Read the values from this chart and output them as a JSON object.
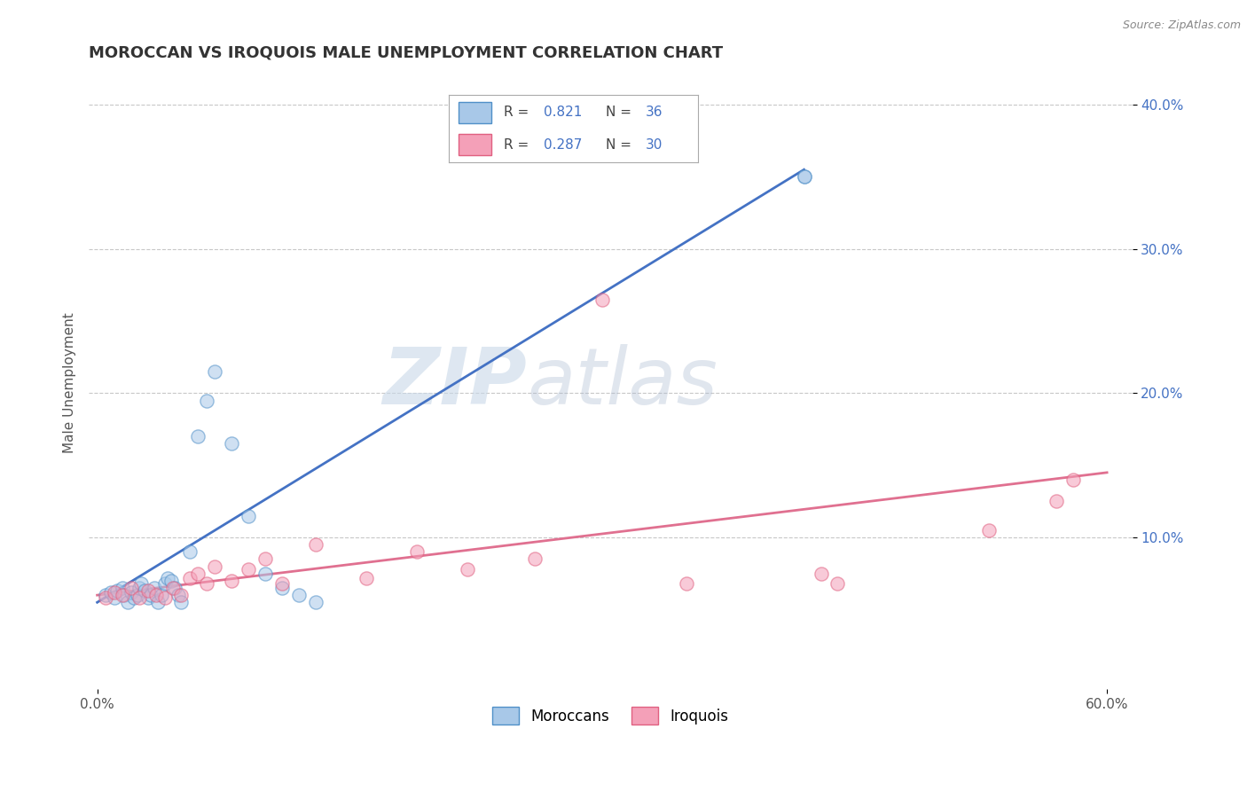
{
  "title": "MOROCCAN VS IROQUOIS MALE UNEMPLOYMENT CORRELATION CHART",
  "source": "Source: ZipAtlas.com",
  "ylabel": "Male Unemployment",
  "xlim": [
    -0.005,
    0.615
  ],
  "ylim": [
    -0.005,
    0.42
  ],
  "xticks": [
    0.0,
    0.6
  ],
  "xticklabels": [
    "0.0%",
    "60.0%"
  ],
  "yticks_right": [
    0.1,
    0.2,
    0.3,
    0.4
  ],
  "ytick_right_labels": [
    "10.0%",
    "20.0%",
    "30.0%",
    "40.0%"
  ],
  "moroccan_color": "#a8c8e8",
  "iroquois_color": "#f4a0b8",
  "moroccan_edge_color": "#5090c8",
  "iroquois_edge_color": "#e06080",
  "moroccan_line_color": "#4472c4",
  "iroquois_line_color": "#e07090",
  "legend_box_color": "#4472c4",
  "moroccan_scatter_x": [
    0.005,
    0.008,
    0.01,
    0.012,
    0.015,
    0.016,
    0.018,
    0.02,
    0.022,
    0.024,
    0.025,
    0.026,
    0.028,
    0.03,
    0.032,
    0.034,
    0.036,
    0.038,
    0.04,
    0.042,
    0.044,
    0.046,
    0.048,
    0.05,
    0.055,
    0.06,
    0.065,
    0.07,
    0.08,
    0.09,
    0.1,
    0.11,
    0.12,
    0.13,
    0.42,
    0.42
  ],
  "moroccan_scatter_y": [
    0.06,
    0.062,
    0.058,
    0.063,
    0.065,
    0.06,
    0.055,
    0.062,
    0.058,
    0.06,
    0.065,
    0.068,
    0.063,
    0.058,
    0.06,
    0.065,
    0.055,
    0.06,
    0.068,
    0.072,
    0.07,
    0.065,
    0.06,
    0.055,
    0.09,
    0.17,
    0.195,
    0.215,
    0.165,
    0.115,
    0.075,
    0.065,
    0.06,
    0.055,
    0.35,
    0.35
  ],
  "iroquois_scatter_x": [
    0.005,
    0.01,
    0.015,
    0.02,
    0.025,
    0.03,
    0.035,
    0.04,
    0.045,
    0.05,
    0.055,
    0.06,
    0.065,
    0.07,
    0.08,
    0.09,
    0.1,
    0.11,
    0.13,
    0.16,
    0.19,
    0.22,
    0.26,
    0.3,
    0.35,
    0.43,
    0.44,
    0.53,
    0.57,
    0.58
  ],
  "iroquois_scatter_y": [
    0.058,
    0.062,
    0.06,
    0.065,
    0.058,
    0.063,
    0.06,
    0.058,
    0.065,
    0.06,
    0.072,
    0.075,
    0.068,
    0.08,
    0.07,
    0.078,
    0.085,
    0.068,
    0.095,
    0.072,
    0.09,
    0.078,
    0.085,
    0.265,
    0.068,
    0.075,
    0.068,
    0.105,
    0.125,
    0.14
  ],
  "moroccan_trendline_x": [
    0.0,
    0.42
  ],
  "moroccan_trendline_y": [
    0.055,
    0.355
  ],
  "iroquois_trendline_x": [
    0.0,
    0.6
  ],
  "iroquois_trendline_y": [
    0.06,
    0.145
  ],
  "watermark_zip": "ZIP",
  "watermark_atlas": "atlas",
  "background_color": "#ffffff",
  "grid_color": "#c8c8c8",
  "title_fontsize": 13,
  "axis_label_fontsize": 11,
  "tick_fontsize": 11,
  "scatter_size": 120,
  "scatter_alpha": 0.55,
  "scatter_linewidth": 1.0
}
